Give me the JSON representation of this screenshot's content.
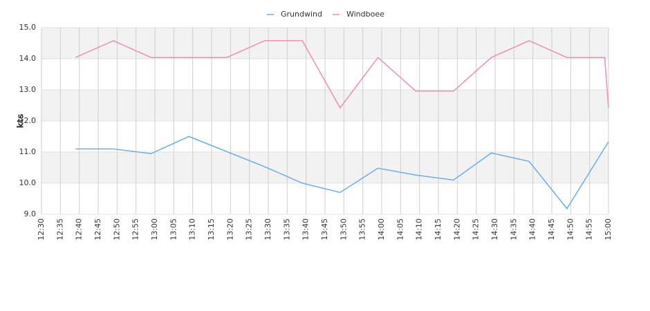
{
  "chart_data": {
    "type": "line",
    "y_label": "kts",
    "xlim": [
      "12:30",
      "15:00"
    ],
    "xticks": [
      "12:30",
      "12:35",
      "12:40",
      "12:45",
      "12:50",
      "12:55",
      "13:00",
      "13:05",
      "13:10",
      "13:15",
      "13:20",
      "13:25",
      "13:30",
      "13:35",
      "13:40",
      "13:45",
      "13:50",
      "13:55",
      "14:00",
      "14:05",
      "14:10",
      "14:15",
      "14:20",
      "14:25",
      "14:30",
      "14:35",
      "14:40",
      "14:45",
      "14:50",
      "14:55",
      "15:00"
    ],
    "ylim": [
      9,
      15
    ],
    "yticks": [
      {
        "value": 9,
        "label": "9.0"
      },
      {
        "value": 10,
        "label": "10.0"
      },
      {
        "value": 11,
        "label": "11.0"
      },
      {
        "value": 12,
        "label": "12.0"
      },
      {
        "value": 13,
        "label": "13.0"
      },
      {
        "value": 14,
        "label": "14.0"
      },
      {
        "value": 15,
        "label": "15.0"
      }
    ],
    "grid": true,
    "legend": "top",
    "series": [
      {
        "name": "Grundwind",
        "color": "#6aaee8",
        "x": [
          "12:39",
          "12:49",
          "12:59",
          "13:09",
          "13:29",
          "13:39",
          "13:49",
          "13:59",
          "14:09",
          "14:19",
          "14:29",
          "14:39",
          "14:49",
          "15:00"
        ],
        "values": [
          11.1,
          11.1,
          10.95,
          11.5,
          10.53,
          10.0,
          9.7,
          10.48,
          10.26,
          10.1,
          10.97,
          10.7,
          9.18,
          11.33
        ]
      },
      {
        "name": "Windboee",
        "color": "#f08cba",
        "x": [
          "12:39",
          "12:49",
          "12:59",
          "13:09",
          "13:19",
          "13:29",
          "13:39",
          "13:49",
          "13:59",
          "14:09",
          "14:19",
          "14:29",
          "14:39",
          "14:49",
          "14:59",
          "15:00"
        ],
        "values": [
          14.04,
          14.58,
          14.04,
          14.04,
          14.04,
          14.58,
          14.58,
          12.42,
          14.04,
          12.96,
          12.96,
          14.04,
          14.58,
          14.04,
          14.04,
          12.42
        ]
      }
    ]
  }
}
